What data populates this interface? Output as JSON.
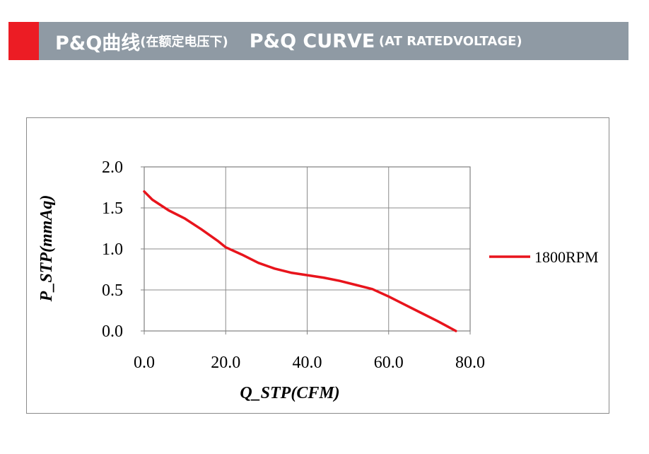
{
  "header": {
    "title_main": "P&Q曲线",
    "title_cn_note": "(在额定电压下)",
    "title_en_main": "P&Q CURVE",
    "title_en_note": "(AT RATEDVOLTAGE)",
    "bar_color": "#8f9aa4",
    "accent_color": "#ec1c24"
  },
  "chart_data": {
    "type": "line",
    "title": "",
    "xlabel": "Q_STP(CFM)",
    "ylabel": "P_STP(mmAq)",
    "xlim": [
      0,
      80
    ],
    "ylim": [
      0,
      2
    ],
    "xticks": [
      "0.0",
      "20.0",
      "40.0",
      "60.0",
      "80.0"
    ],
    "yticks": [
      "0.0",
      "0.5",
      "1.0",
      "1.5",
      "2.0"
    ],
    "grid": true,
    "legend_position": "right",
    "series": [
      {
        "name": "1800RPM",
        "color": "#e8141c",
        "x": [
          0,
          2,
          6,
          10,
          14,
          18,
          20,
          24,
          28,
          32,
          36,
          40,
          44,
          48,
          52,
          56,
          60,
          64,
          68,
          72,
          76.5
        ],
        "y": [
          1.7,
          1.6,
          1.47,
          1.37,
          1.24,
          1.1,
          1.02,
          0.93,
          0.83,
          0.76,
          0.71,
          0.68,
          0.65,
          0.61,
          0.56,
          0.51,
          0.42,
          0.32,
          0.22,
          0.12,
          0.0
        ]
      }
    ]
  }
}
